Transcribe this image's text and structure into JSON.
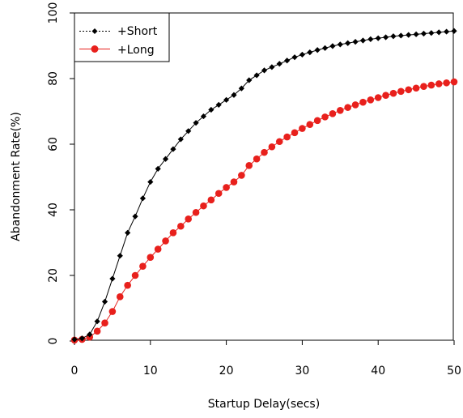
{
  "chart_data": {
    "type": "line",
    "xlabel": "Startup Delay(secs)",
    "ylabel": "Abandonment Rate(%)",
    "xlim": [
      0,
      50
    ],
    "ylim": [
      0,
      100
    ],
    "xticks": [
      "0",
      "10",
      "20",
      "30",
      "40",
      "50"
    ],
    "yticks": [
      "0",
      "20",
      "40",
      "60",
      "80",
      "100"
    ],
    "legend_position": "top-left",
    "grid": false,
    "x": [
      0,
      1,
      2,
      3,
      4,
      5,
      6,
      7,
      8,
      9,
      10,
      11,
      12,
      13,
      14,
      15,
      16,
      17,
      18,
      19,
      20,
      21,
      22,
      23,
      24,
      25,
      26,
      27,
      28,
      29,
      30,
      31,
      32,
      33,
      34,
      35,
      36,
      37,
      38,
      39,
      40,
      41,
      42,
      43,
      44,
      45,
      46,
      47,
      48,
      49,
      50
    ],
    "series": [
      {
        "name": "+Short",
        "color": "#000000",
        "marker": "diamond",
        "line": "solid",
        "values": [
          0.5,
          0.8,
          2,
          6,
          12,
          19,
          26,
          33,
          38,
          43.5,
          48.5,
          52.5,
          55.5,
          58.5,
          61.5,
          64,
          66.5,
          68.5,
          70.5,
          72,
          73.5,
          75,
          77,
          79.5,
          81,
          82.5,
          83.5,
          84.5,
          85.5,
          86.5,
          87.3,
          88,
          88.7,
          89.3,
          89.9,
          90.4,
          90.8,
          91.2,
          91.6,
          92,
          92.3,
          92.6,
          92.9,
          93.1,
          93.3,
          93.5,
          93.7,
          93.9,
          94.1,
          94.3,
          94.5
        ]
      },
      {
        "name": "+Long",
        "color": "#e8201c",
        "marker": "circle",
        "line": "solid",
        "values": [
          0.3,
          0.5,
          1.2,
          3,
          5.5,
          9,
          13.5,
          17,
          20,
          22.8,
          25.5,
          28,
          30.5,
          33,
          35,
          37.2,
          39.2,
          41.2,
          43,
          45,
          46.8,
          48.5,
          50.5,
          53.5,
          55.5,
          57.5,
          59.2,
          60.8,
          62.2,
          63.5,
          64.8,
          66,
          67.2,
          68.3,
          69.3,
          70.3,
          71.2,
          72,
          72.8,
          73.5,
          74.2,
          74.9,
          75.5,
          76.1,
          76.6,
          77.1,
          77.6,
          78,
          78.4,
          78.7,
          79
        ]
      }
    ]
  }
}
